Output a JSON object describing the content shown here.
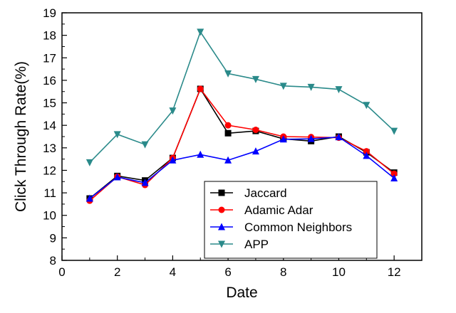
{
  "chart_data": {
    "type": "line",
    "title": "",
    "xlabel": "Date",
    "ylabel": "Click Through Rate(%)",
    "xlim": [
      0,
      13
    ],
    "ylim": [
      8,
      19
    ],
    "x_ticks": [
      0,
      2,
      4,
      6,
      8,
      10,
      12
    ],
    "y_ticks": [
      8,
      9,
      10,
      11,
      12,
      13,
      14,
      15,
      16,
      17,
      18,
      19
    ],
    "x": [
      1,
      2,
      3,
      4,
      5,
      6,
      7,
      8,
      9,
      10,
      11,
      12
    ],
    "legend_position": "bottom-right",
    "series": [
      {
        "name": "Jaccard",
        "color": "#000000",
        "marker": "square",
        "values": [
          10.75,
          11.75,
          11.55,
          12.55,
          15.62,
          13.65,
          13.75,
          13.4,
          13.3,
          13.5,
          12.8,
          11.9
        ]
      },
      {
        "name": "Adamic Adar",
        "color": "#ff0000",
        "marker": "circle",
        "values": [
          10.65,
          11.72,
          11.35,
          12.55,
          15.62,
          14.0,
          13.8,
          13.5,
          13.48,
          13.45,
          12.85,
          11.85
        ]
      },
      {
        "name": "Common Neighbors",
        "color": "#0000ff",
        "marker": "triangle-up",
        "values": [
          10.75,
          11.7,
          11.45,
          12.45,
          12.7,
          12.45,
          12.85,
          13.38,
          13.4,
          13.48,
          12.65,
          11.65
        ]
      },
      {
        "name": "APP",
        "color": "#2a8a8a",
        "marker": "triangle-down",
        "values": [
          12.35,
          13.6,
          13.15,
          14.65,
          18.15,
          16.3,
          16.05,
          15.75,
          15.7,
          15.6,
          14.9,
          13.75
        ]
      }
    ]
  }
}
